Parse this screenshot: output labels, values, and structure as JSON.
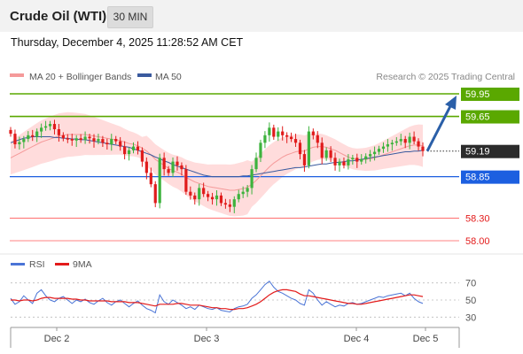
{
  "header": {
    "instrument": "Crude Oil (WTI)",
    "timeframe": "30 MIN",
    "datetime": "Thursday, December 4, 2025 11:28:52 AM CET"
  },
  "legend": {
    "ma20_label": "MA 20 + Bollinger Bands",
    "ma50_label": "MA 50",
    "source": "Research © 2025 Trading Central",
    "rsi_label": "RSI",
    "ma9_label": "9MA"
  },
  "colors": {
    "green": "#5aa800",
    "blue": "#1c5fe0",
    "red": "#ff5a5a",
    "ma20": "#f59a9a",
    "bollinger": "#ffd6d6",
    "ma50": "#3a5a9e",
    "candle_up": "#3db33d",
    "candle_down": "#e01b1b",
    "arrow": "#2a5fa8",
    "rsi": "#4a74d6",
    "rsi_ma": "#e31b1b",
    "current_price_bg": "#2b2b2b"
  },
  "chart_data": {
    "type": "candlestick",
    "title": "Crude Oil (WTI)",
    "timeframe": "30 MIN",
    "price_range": [
      57.9,
      60.0
    ],
    "x_labels": [
      "Dec 2",
      "Dec 3",
      "Dec 4",
      "Dec 5"
    ],
    "current_price": 59.19,
    "levels": [
      {
        "value": 59.95,
        "label": "59.95",
        "role": "resistance"
      },
      {
        "value": 59.65,
        "label": "59.65",
        "role": "resistance"
      },
      {
        "value": 58.85,
        "label": "58.85",
        "role": "pivot"
      },
      {
        "value": 58.3,
        "label": "58.30",
        "role": "support"
      },
      {
        "value": 58.0,
        "label": "58.00",
        "role": "support"
      }
    ],
    "target_arrow": {
      "from": 59.19,
      "to": 59.95
    },
    "closes": [
      59.42,
      59.28,
      59.31,
      59.35,
      59.4,
      59.38,
      59.45,
      59.5,
      59.52,
      59.55,
      59.48,
      59.4,
      59.36,
      59.35,
      59.33,
      59.36,
      59.34,
      59.38,
      59.36,
      59.32,
      59.35,
      59.3,
      59.28,
      59.35,
      59.32,
      59.25,
      59.15,
      59.2,
      59.25,
      59.2,
      59.05,
      58.9,
      58.75,
      58.5,
      59.1,
      58.95,
      58.9,
      59.05,
      59.0,
      58.95,
      58.65,
      58.6,
      58.55,
      58.7,
      58.62,
      58.58,
      58.55,
      58.6,
      58.5,
      58.48,
      58.45,
      58.55,
      58.62,
      58.65,
      58.7,
      58.95,
      59.1,
      59.3,
      59.4,
      59.5,
      59.38,
      59.45,
      59.4,
      59.38,
      59.35,
      59.3,
      59.15,
      59.0,
      59.45,
      59.4,
      59.3,
      59.1,
      59.2,
      59.1,
      59.0,
      59.05,
      59.0,
      59.08,
      59.1,
      59.05,
      59.08,
      59.12,
      59.15,
      59.18,
      59.22,
      59.25,
      59.28,
      59.3,
      59.32,
      59.35,
      59.3,
      59.38,
      59.32,
      59.25,
      59.19
    ],
    "ma20": [
      59.1,
      59.13,
      59.16,
      59.19,
      59.22,
      59.25,
      59.28,
      59.31,
      59.33,
      59.35,
      59.37,
      59.39,
      59.4,
      59.41,
      59.41,
      59.41,
      59.41,
      59.41,
      59.4,
      59.39,
      59.38,
      59.37,
      59.36,
      59.35,
      59.34,
      59.33,
      59.31,
      59.29,
      59.28,
      59.26,
      59.23,
      59.19,
      59.14,
      59.08,
      59.04,
      59.0,
      58.96,
      58.93,
      58.91,
      58.88,
      58.84,
      58.81,
      58.78,
      58.76,
      58.74,
      58.72,
      58.71,
      58.7,
      58.69,
      58.68,
      58.67,
      58.67,
      58.68,
      58.69,
      58.71,
      58.75,
      58.8,
      58.86,
      58.92,
      58.98,
      59.03,
      59.07,
      59.11,
      59.14,
      59.16,
      59.18,
      59.19,
      59.19,
      59.22,
      59.24,
      59.25,
      59.25,
      59.24,
      59.22,
      59.2,
      59.17,
      59.14,
      59.11,
      59.09,
      59.08,
      59.08,
      59.08,
      59.09,
      59.1,
      59.12,
      59.14,
      59.16,
      59.18,
      59.2,
      59.22,
      59.24,
      59.26,
      59.27,
      59.27,
      59.26
    ],
    "ma50": [
      59.3,
      59.32,
      59.34,
      59.36,
      59.37,
      59.38,
      59.38,
      59.38,
      59.38,
      59.38,
      59.37,
      59.37,
      59.36,
      59.36,
      59.35,
      59.35,
      59.34,
      59.34,
      59.33,
      59.32,
      59.31,
      59.3,
      59.29,
      59.28,
      59.27,
      59.26,
      59.25,
      59.24,
      59.22,
      59.2,
      59.18,
      59.16,
      59.14,
      59.11,
      59.09,
      59.06,
      59.04,
      59.01,
      58.99,
      58.97,
      58.95,
      58.93,
      58.91,
      58.89,
      58.87,
      58.86,
      58.85,
      58.85,
      58.85,
      58.85,
      58.85,
      58.85,
      58.85,
      58.86,
      58.86,
      58.87,
      58.88,
      58.89,
      58.9,
      58.91,
      58.92,
      58.93,
      58.94,
      58.95,
      58.96,
      58.97,
      58.97,
      58.98,
      58.99,
      59.0,
      59.01,
      59.02,
      59.02,
      59.03,
      59.04,
      59.04,
      59.05,
      59.06,
      59.06,
      59.07,
      59.08,
      59.09,
      59.1,
      59.11,
      59.12,
      59.13,
      59.14,
      59.15,
      59.16,
      59.17,
      59.18,
      59.18,
      59.19,
      59.19,
      59.2
    ],
    "rsi": {
      "ticks": [
        70,
        50,
        30
      ],
      "range": [
        20,
        80
      ],
      "rsi_values": [
        52,
        45,
        48,
        55,
        50,
        46,
        58,
        62,
        55,
        50,
        48,
        52,
        54,
        50,
        46,
        50,
        48,
        51,
        47,
        45,
        49,
        52,
        47,
        44,
        48,
        50,
        46,
        42,
        46,
        49,
        44,
        40,
        38,
        35,
        56,
        48,
        45,
        50,
        47,
        44,
        40,
        42,
        39,
        44,
        42,
        40,
        39,
        41,
        38,
        37,
        36,
        40,
        42,
        43,
        45,
        52,
        56,
        62,
        68,
        72,
        65,
        60,
        58,
        55,
        52,
        50,
        46,
        44,
        62,
        58,
        50,
        44,
        48,
        45,
        42,
        44,
        43,
        46,
        47,
        45,
        46,
        48,
        50,
        52,
        54,
        53,
        55,
        56,
        57,
        58,
        55,
        58,
        52,
        48,
        46
      ],
      "ma9_values": [
        50,
        50,
        49,
        50,
        50,
        49,
        50,
        52,
        53,
        53,
        52,
        52,
        52,
        52,
        51,
        51,
        50,
        50,
        49,
        49,
        49,
        49,
        49,
        48,
        48,
        48,
        48,
        47,
        47,
        47,
        46,
        45,
        44,
        43,
        45,
        45,
        45,
        45,
        46,
        46,
        45,
        44,
        44,
        44,
        43,
        42,
        41,
        41,
        40,
        40,
        39,
        39,
        40,
        40,
        41,
        43,
        45,
        48,
        52,
        56,
        59,
        61,
        62,
        62,
        61,
        60,
        57,
        55,
        55,
        54,
        53,
        52,
        51,
        50,
        49,
        48,
        47,
        46,
        46,
        45,
        45,
        46,
        47,
        48,
        49,
        50,
        51,
        52,
        53,
        54,
        55,
        56,
        56,
        55,
        54
      ]
    }
  }
}
